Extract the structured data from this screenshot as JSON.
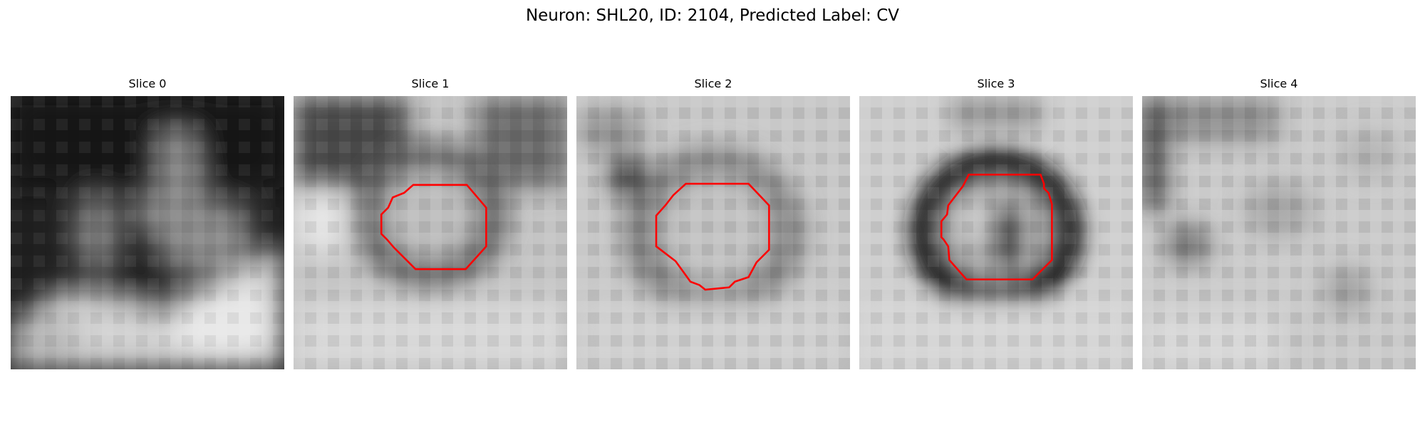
{
  "figure": {
    "title": "Neuron: SHL20, ID: 2104, Predicted Label: CV"
  },
  "contour_color": "#ff0000",
  "colormap": "grayscale",
  "panels": [
    {
      "title": "Slice 0",
      "has_contour": false
    },
    {
      "title": "Slice 1",
      "has_contour": true
    },
    {
      "title": "Slice 2",
      "has_contour": true
    },
    {
      "title": "Slice 3",
      "has_contour": true
    },
    {
      "title": "Slice 4",
      "has_contour": false
    }
  ]
}
